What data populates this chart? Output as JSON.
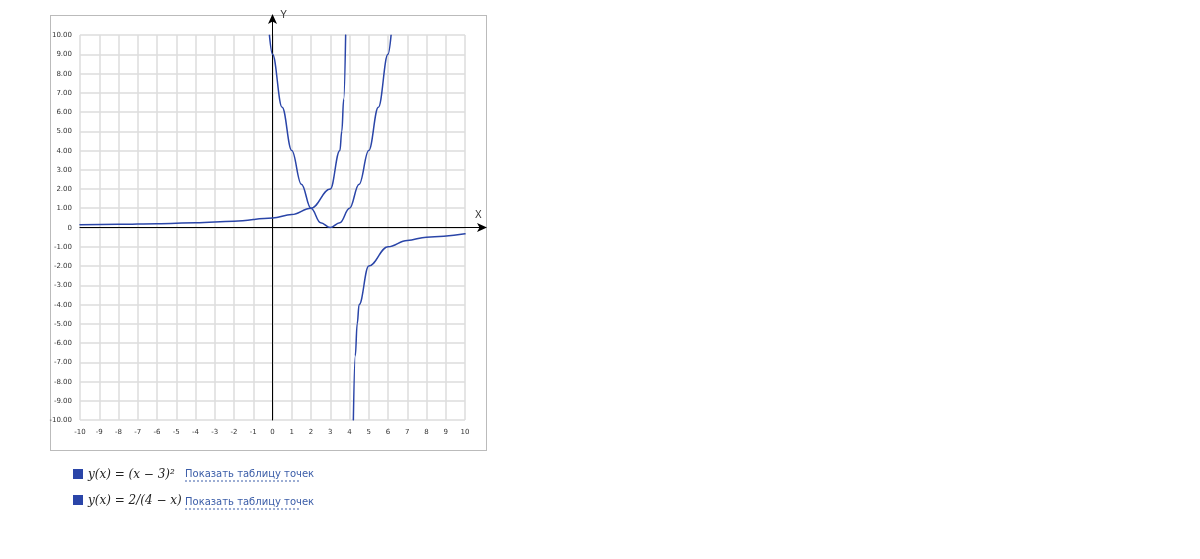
{
  "chart_data": {
    "type": "line",
    "xlabel": "X",
    "ylabel": "Y",
    "xlim": [
      -10,
      10
    ],
    "ylim": [
      -10,
      10
    ],
    "xticks": [
      -10,
      -9,
      -8,
      -7,
      -6,
      -5,
      -4,
      -3,
      -2,
      -1,
      0,
      1,
      2,
      3,
      4,
      5,
      6,
      7,
      8,
      9,
      10
    ],
    "yticks": [
      {
        "value": -10,
        "label": "-10.00"
      },
      {
        "value": -9,
        "label": "-9.00"
      },
      {
        "value": -8,
        "label": "-8.00"
      },
      {
        "value": -7,
        "label": "-7.00"
      },
      {
        "value": -6,
        "label": "-6.00"
      },
      {
        "value": -5,
        "label": "-5.00"
      },
      {
        "value": -4,
        "label": "-4.00"
      },
      {
        "value": -3,
        "label": "-3.00"
      },
      {
        "value": -2,
        "label": "-2.00"
      },
      {
        "value": -1,
        "label": "-1.00"
      },
      0,
      {
        "value": 1,
        "label": "1.00"
      },
      {
        "value": 2,
        "label": "2.00"
      },
      {
        "value": 3,
        "label": "3.00"
      },
      {
        "value": 4,
        "label": "4.00"
      },
      {
        "value": 5,
        "label": "5.00"
      },
      {
        "value": 6,
        "label": "6.00"
      },
      {
        "value": 7,
        "label": "7.00"
      },
      {
        "value": 8,
        "label": "8.00"
      },
      {
        "value": 9,
        "label": "9.00"
      },
      {
        "value": 10,
        "label": "10.00"
      }
    ],
    "series": [
      {
        "name": "y(x) = (x − 3)²",
        "color": "#2a45a8",
        "x": [
          -0.16,
          0,
          0.5,
          1,
          1.5,
          2,
          2.5,
          3,
          3.5,
          4,
          4.5,
          5,
          5.5,
          6,
          6.16
        ],
        "values": [
          9.99,
          9,
          6.25,
          4,
          2.25,
          1,
          0.25,
          0,
          0.25,
          1,
          2.25,
          4,
          6.25,
          9,
          9.99
        ]
      },
      {
        "name": "y(x) = 2/(4 − x)",
        "color": "#2a45a8",
        "x": [
          -10,
          -8,
          -6,
          -4,
          -2,
          0,
          1,
          2,
          3,
          3.5,
          3.6,
          3.7,
          3.8,
          4,
          4.2,
          4.3,
          4.4,
          4.5,
          5,
          6,
          7,
          8,
          10
        ],
        "values": [
          0.14,
          0.17,
          0.2,
          0.25,
          0.33,
          0.5,
          0.67,
          1,
          2,
          4,
          5,
          6.67,
          10,
          null,
          -10,
          -6.67,
          -5,
          -4,
          -2,
          -1,
          -0.67,
          -0.5,
          -0.33
        ]
      }
    ],
    "grid": true,
    "legend": "bottom",
    "marker": "none",
    "line_style": "solid",
    "annotations": [
      "Показать таблицу точек",
      "Показать таблицу точек"
    ]
  }
}
